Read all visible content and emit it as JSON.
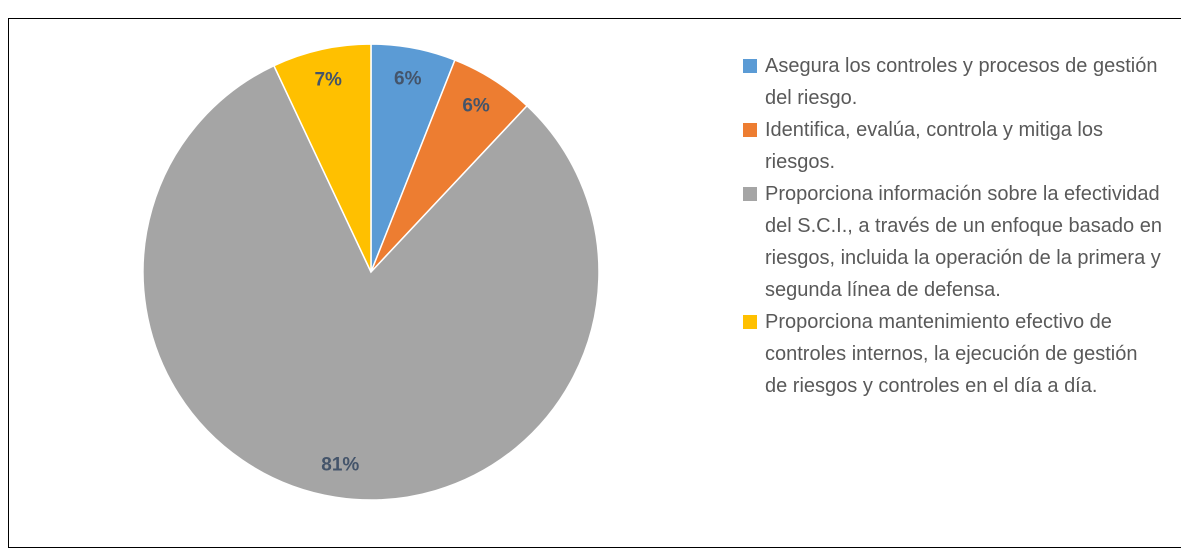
{
  "chart_data": {
    "type": "pie",
    "categories": [
      "Asegura los controles y procesos de gestión del riesgo.",
      "Identifica, evalúa, controla y mitiga los riesgos.",
      "Proporciona información sobre la efectividad del S.C.I., a través de un enfoque basado en riesgos, incluida la operación de la primera y segunda línea de defensa.",
      "Proporciona mantenimiento efectivo de controles internos, la ejecución de gestión de riesgos y controles en el día a día."
    ],
    "values": [
      6,
      6,
      81,
      7
    ],
    "value_labels": [
      "6%",
      "6%",
      "81%",
      "7%"
    ],
    "colors": [
      "#5b9bd5",
      "#ed7d31",
      "#a5a5a5",
      "#ffc000"
    ],
    "legend": "right"
  }
}
